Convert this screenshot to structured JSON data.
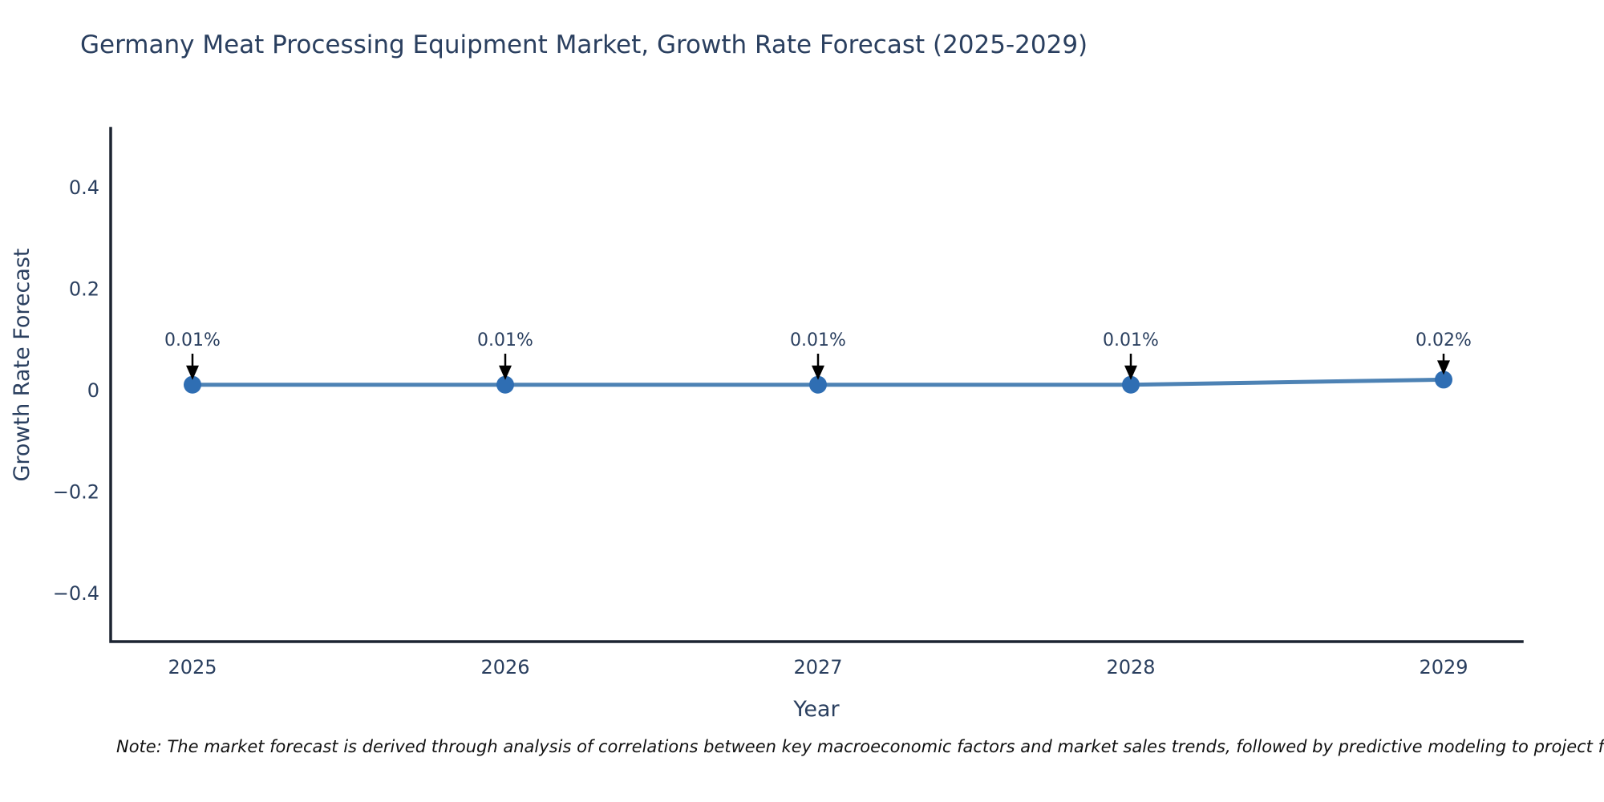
{
  "chart_data": {
    "type": "line",
    "title": "Germany Meat Processing Equipment Market, Growth Rate Forecast (2025-2029)",
    "xlabel": "Year",
    "ylabel": "Growth Rate Forecast",
    "x": [
      2025,
      2026,
      2027,
      2028,
      2029
    ],
    "x_tick_labels": [
      "2025",
      "2026",
      "2027",
      "2028",
      "2029"
    ],
    "series": [
      {
        "name": "Growth Rate Forecast",
        "values": [
          0.01,
          0.01,
          0.01,
          0.01,
          0.02
        ],
        "point_labels": [
          "0.01%",
          "0.01%",
          "0.01%",
          "0.01%",
          "0.02%"
        ]
      }
    ],
    "ylim": [
      -0.5,
      0.5
    ],
    "yticks": [
      0.4,
      0.2,
      0,
      -0.2,
      -0.4
    ],
    "ytick_labels": [
      "0.4",
      "0.2",
      "0",
      "−0.2",
      "−0.4"
    ],
    "grid": false,
    "legend": "none",
    "colors": {
      "line": "#4d82b4",
      "marker": "#2f6eb3",
      "axis": "#1c2431",
      "tick_text": "#2a3f5f",
      "annotation_text": "#2a3f5f",
      "annotation_arrow": "#000000"
    }
  },
  "note": {
    "text": "Note: The market forecast is derived through analysis of correlations between key macroeconomic factors and market sales trends, followed by predictive modeling to project future sales."
  }
}
